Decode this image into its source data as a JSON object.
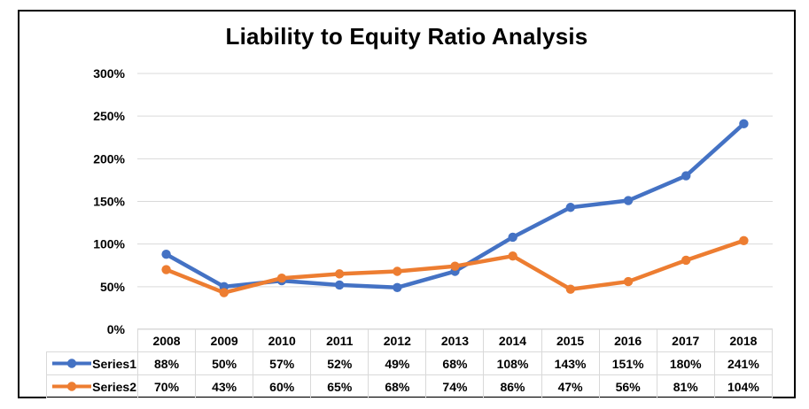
{
  "window": {
    "background_color": "#ffffff",
    "frame_border_color": "#000000"
  },
  "chart_data": {
    "type": "line",
    "title": "Liability to Equity Ratio Analysis",
    "xlabel": "",
    "ylabel": "",
    "categories": [
      "2008",
      "2009",
      "2010",
      "2011",
      "2012",
      "2013",
      "2014",
      "2015",
      "2016",
      "2017",
      "2018"
    ],
    "series": [
      {
        "name": "Series1",
        "color": "#4472C4",
        "values": [
          88,
          50,
          57,
          52,
          49,
          68,
          108,
          143,
          151,
          180,
          241
        ]
      },
      {
        "name": "Series2",
        "color": "#ED7D31",
        "values": [
          70,
          43,
          60,
          65,
          68,
          74,
          86,
          47,
          56,
          81,
          104
        ]
      }
    ],
    "value_suffix": "%",
    "ylim": [
      0,
      300
    ],
    "ytick_step": 50,
    "yticks": [
      "0%",
      "50%",
      "100%",
      "150%",
      "200%",
      "250%",
      "300%"
    ],
    "grid": true,
    "gridline_color": "#D9D9D9",
    "table_border_color": "#D9D9D9",
    "text_color": "#000000",
    "marker": "circle",
    "legend_position": "data-table-left"
  }
}
